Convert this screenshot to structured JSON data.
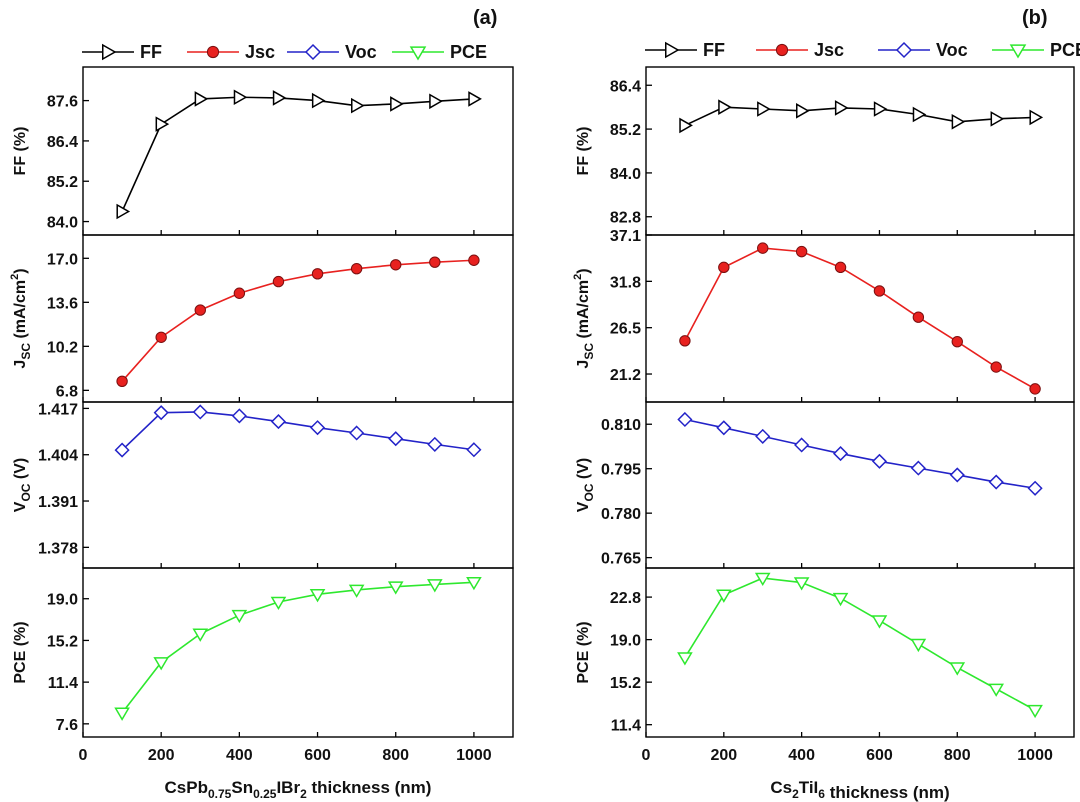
{
  "chart_data": [
    {
      "panel_label": "(a)",
      "xlabel": {
        "pre": "CsPb",
        "s1": "0.75",
        "mid": "Sn",
        "s2": "0.25",
        "post": "IBr",
        "s3": "2",
        "tail": " thickness (nm)"
      },
      "xlim": [
        0,
        1100
      ],
      "x_ticks": [
        0,
        200,
        400,
        600,
        800,
        1000
      ],
      "x": [
        100,
        200,
        300,
        400,
        500,
        600,
        700,
        800,
        900,
        1000
      ],
      "legend": [
        "FF",
        "Jsc",
        "Voc",
        "PCE"
      ],
      "subplots": [
        {
          "type": "line",
          "key": "FF",
          "marker": "triangle-right",
          "color": "#000000",
          "fill": "#ffffff",
          "ylabel": {
            "main": "FF (%)"
          },
          "ylim": [
            83.6,
            88.6
          ],
          "y_ticks": [
            "84.0",
            "85.2",
            "86.4",
            "87.6"
          ],
          "values": [
            84.3,
            86.9,
            87.65,
            87.7,
            87.68,
            87.6,
            87.45,
            87.5,
            87.58,
            87.65
          ]
        },
        {
          "type": "line",
          "key": "Jsc",
          "marker": "circle",
          "color": "#e8211f",
          "fill": "#e8211f",
          "ylabel": {
            "base": "J",
            "sub": "SC",
            "unit": " (mA/cm",
            "sup": "2",
            "close": ")"
          },
          "ylim": [
            5.9,
            18.8
          ],
          "y_ticks": [
            "6.8",
            "10.2",
            "13.6",
            "17.0"
          ],
          "values": [
            7.5,
            10.9,
            13.0,
            14.3,
            15.2,
            15.8,
            16.2,
            16.5,
            16.7,
            16.85
          ]
        },
        {
          "type": "line",
          "key": "Voc",
          "marker": "diamond",
          "color": "#2323c8",
          "fill": "#ffffff",
          "ylabel": {
            "base": "V",
            "sub": "OC",
            "unit": " (V)"
          },
          "ylim": [
            1.3722,
            1.4188
          ],
          "y_ticks": [
            "1.378",
            "1.391",
            "1.404",
            "1.417"
          ],
          "values": [
            1.4053,
            1.4158,
            1.416,
            1.4149,
            1.4133,
            1.4116,
            1.4101,
            1.4085,
            1.4069,
            1.4054
          ]
        },
        {
          "type": "line",
          "key": "PCE",
          "marker": "triangle-down",
          "color": "#2ee82e",
          "fill": "#ffffff",
          "ylabel": {
            "main": "PCE (%)"
          },
          "ylim": [
            6.4,
            21.8
          ],
          "y_ticks": [
            "7.6",
            "11.4",
            "15.2",
            "19.0"
          ],
          "values": [
            8.6,
            13.2,
            15.8,
            17.5,
            18.7,
            19.4,
            19.8,
            20.1,
            20.3,
            20.5
          ]
        }
      ]
    },
    {
      "panel_label": "(b)",
      "xlabel": {
        "pre": "Cs",
        "s1": "2",
        "mid": "TiI",
        "s2": "6",
        "post": "",
        "s3": "",
        "tail": " thickness (nm)"
      },
      "xlim": [
        0,
        1100
      ],
      "x_ticks": [
        0,
        200,
        400,
        600,
        800,
        1000
      ],
      "x": [
        100,
        200,
        300,
        400,
        500,
        600,
        700,
        800,
        900,
        1000
      ],
      "legend": [
        "FF",
        "Jsc",
        "Voc",
        "PCE"
      ],
      "subplots": [
        {
          "type": "line",
          "key": "FF",
          "marker": "triangle-right",
          "color": "#000000",
          "fill": "#ffffff",
          "ylabel": {
            "main": "FF (%)"
          },
          "ylim": [
            82.3,
            86.9
          ],
          "y_ticks": [
            "82.8",
            "84.0",
            "85.2",
            "86.4"
          ],
          "values": [
            85.3,
            85.8,
            85.75,
            85.7,
            85.78,
            85.75,
            85.6,
            85.4,
            85.48,
            85.52
          ]
        },
        {
          "type": "line",
          "key": "Jsc",
          "marker": "circle",
          "color": "#e8211f",
          "fill": "#e8211f",
          "ylabel": {
            "base": "J",
            "sub": "SC",
            "unit": " (mA/cm",
            "sup": "2",
            "close": ")"
          },
          "ylim": [
            18.0,
            37.1
          ],
          "y_ticks": [
            "21.2",
            "26.5",
            "31.8",
            "37.1"
          ],
          "values": [
            25.0,
            33.4,
            35.6,
            35.2,
            33.4,
            30.7,
            27.7,
            24.9,
            22.0,
            19.5
          ]
        },
        {
          "type": "line",
          "key": "Voc",
          "marker": "diamond",
          "color": "#2323c8",
          "fill": "#ffffff",
          "ylabel": {
            "base": "V",
            "sub": "OC",
            "unit": " (V)"
          },
          "ylim": [
            0.7615,
            0.8175
          ],
          "y_ticks": [
            "0.765",
            "0.780",
            "0.795",
            "0.810"
          ],
          "values": [
            0.8116,
            0.8088,
            0.8059,
            0.803,
            0.8001,
            0.7975,
            0.7952,
            0.7929,
            0.7905,
            0.7884
          ]
        },
        {
          "type": "line",
          "key": "PCE",
          "marker": "triangle-down",
          "color": "#2ee82e",
          "fill": "#ffffff",
          "ylabel": {
            "main": "PCE (%)"
          },
          "ylim": [
            10.3,
            25.4
          ],
          "y_ticks": [
            "11.4",
            "15.2",
            "19.0",
            "22.8"
          ],
          "values": [
            17.4,
            23.0,
            24.5,
            24.1,
            22.7,
            20.7,
            18.6,
            16.5,
            14.6,
            12.7
          ]
        }
      ]
    }
  ]
}
